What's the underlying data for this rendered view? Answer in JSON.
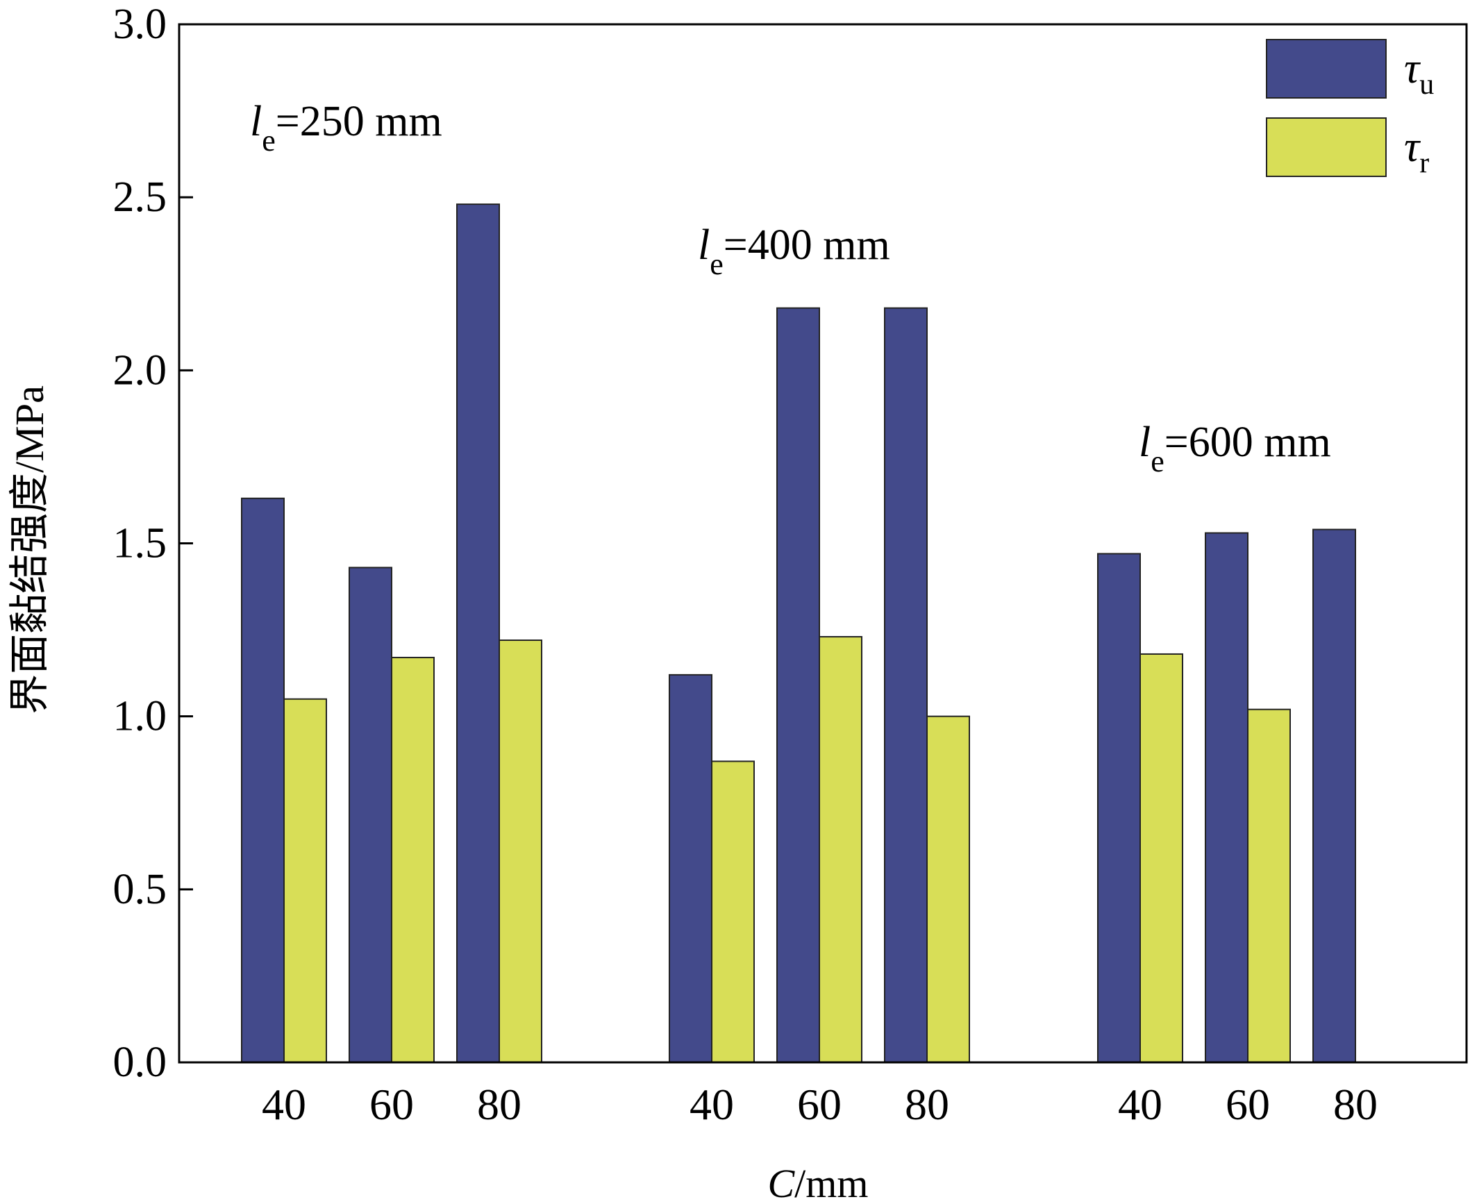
{
  "chart_data": {
    "type": "bar",
    "xlabel": {
      "italic": "C",
      "rest": "/mm"
    },
    "ylabel": "界面黏结强度/MPa",
    "ylim": [
      0,
      3
    ],
    "yticks": [
      "0.0",
      "0.5",
      "1.0",
      "1.5",
      "2.0",
      "2.5",
      "3.0"
    ],
    "grid": false,
    "legend": {
      "position": "top-right",
      "items": [
        {
          "symbol": "τ",
          "sub": "u",
          "color": "#434a8b"
        },
        {
          "symbol": "τ",
          "sub": "r",
          "color": "#d8de57"
        }
      ]
    },
    "groups": [
      {
        "label": {
          "italic": "l",
          "sub": "e",
          "rest": "=250 mm"
        },
        "categories": [
          "40",
          "60",
          "80"
        ],
        "tau_u": [
          1.63,
          1.43,
          2.48
        ],
        "tau_r": [
          1.05,
          1.17,
          1.22
        ]
      },
      {
        "label": {
          "italic": "l",
          "sub": "e",
          "rest": "=400 mm"
        },
        "categories": [
          "40",
          "60",
          "80"
        ],
        "tau_u": [
          1.12,
          2.18,
          2.18
        ],
        "tau_r": [
          0.87,
          1.23,
          1.0
        ]
      },
      {
        "label": {
          "italic": "l",
          "sub": "e",
          "rest": "=600 mm"
        },
        "categories": [
          "40",
          "60",
          "80"
        ],
        "tau_u": [
          1.47,
          1.53,
          1.54
        ],
        "tau_r": [
          1.18,
          1.02,
          null
        ]
      }
    ]
  }
}
